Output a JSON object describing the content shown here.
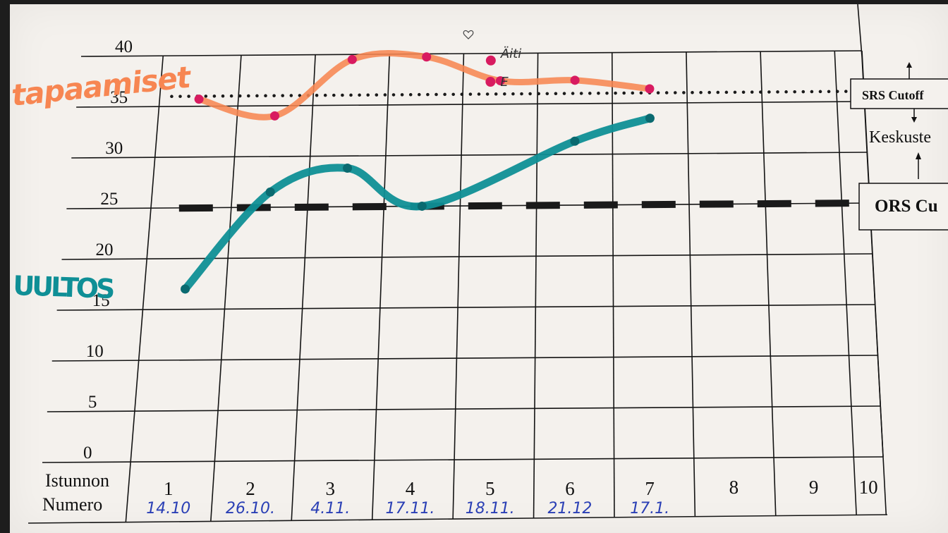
{
  "chart_data": {
    "type": "line",
    "y_ticks": [
      "0",
      "5",
      "10",
      "15",
      "20",
      "25",
      "30",
      "35",
      "40"
    ],
    "ylim": [
      0,
      40
    ],
    "x_row_label_line1": "Istunnon",
    "x_row_label_line2": "Numero",
    "categories": [
      "1",
      "2",
      "3",
      "4",
      "5",
      "6",
      "7",
      "8",
      "9",
      "10"
    ],
    "dates": [
      "14.10",
      "26.10.",
      "4.11.",
      "17.11.",
      "18.11.",
      "21.12",
      "17.1.",
      "",
      "",
      ""
    ],
    "series": [
      {
        "name": "tapaamiset",
        "color": "#f78652",
        "point_color": "#d81b60",
        "values": [
          35.7,
          34.0,
          39.5,
          39.7,
          37.3,
          37.3,
          36.4,
          null,
          null,
          null
        ]
      },
      {
        "name": "UULTOS",
        "color": "#0f8f96",
        "point_color": "#0a6a70",
        "values": [
          17.0,
          26.5,
          28.8,
          25.0,
          null,
          31.3,
          33.5,
          null,
          null,
          null
        ]
      }
    ],
    "extra_points": [
      {
        "x_index": 4,
        "value": 39.3,
        "label": "Äiti"
      },
      {
        "x_index": 4,
        "value": 37.2,
        "label": "E"
      }
    ],
    "reference_lines": [
      {
        "name": "SRS Cutoff",
        "value": 36,
        "style": "dotted",
        "label_line2": "Keskuste"
      },
      {
        "name": "ORS Cu",
        "value": 25,
        "style": "dashed"
      }
    ],
    "grid": true
  },
  "annotations": {
    "orange_handwriting": "tapaamiset",
    "blue_handwriting": "UULTOS",
    "srs_box": "SRS Cutoff",
    "srs_sub": "Keskuste",
    "ors_box": "ORS Cu"
  },
  "colors": {
    "paper": "#f4f1ed",
    "grid": "#111111",
    "orange": "#f78652",
    "teal": "#0f8f96",
    "magenta": "#d81b60",
    "date_ink": "#2a3fb5"
  }
}
